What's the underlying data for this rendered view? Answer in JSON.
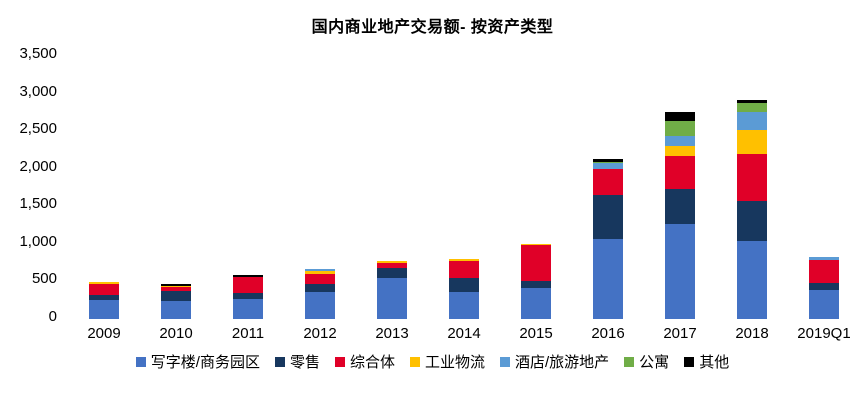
{
  "page": {
    "background": "#FFFFFF"
  },
  "chart_data": {
    "type": "bar",
    "stacked": true,
    "title": "国内商业地产交易额- 按资产类型",
    "categories": [
      "2009",
      "2010",
      "2011",
      "2012",
      "2013",
      "2014",
      "2015",
      "2016",
      "2017",
      "2018",
      "2019Q1"
    ],
    "series": [
      {
        "name": "写字楼/商务园区",
        "color": "#4472C4",
        "values": [
          250,
          240,
          265,
          355,
          550,
          360,
          410,
          1060,
          1270,
          1040,
          385
        ]
      },
      {
        "name": "零售",
        "color": "#17375E",
        "values": [
          65,
          130,
          80,
          105,
          130,
          180,
          90,
          590,
          465,
          535,
          95
        ]
      },
      {
        "name": "综合体",
        "color": "#E00028",
        "values": [
          145,
          50,
          210,
          145,
          65,
          230,
          480,
          340,
          440,
          615,
          300
        ]
      },
      {
        "name": "工业物流",
        "color": "#FFC000",
        "values": [
          30,
          25,
          0,
          40,
          25,
          25,
          25,
          0,
          130,
          320,
          0
        ]
      },
      {
        "name": "酒店/旅游地产",
        "color": "#5B9BD5",
        "values": [
          0,
          0,
          0,
          25,
          0,
          0,
          0,
          80,
          130,
          240,
          50
        ]
      },
      {
        "name": "公寓",
        "color": "#70AD47",
        "values": [
          0,
          0,
          0,
          0,
          0,
          0,
          0,
          25,
          195,
          120,
          0
        ]
      },
      {
        "name": "其他",
        "color": "#000000",
        "values": [
          0,
          25,
          25,
          0,
          0,
          0,
          0,
          40,
          130,
          50,
          0
        ]
      }
    ],
    "totals": [
      490,
      470,
      580,
      670,
      770,
      795,
      1005,
      2135,
      2760,
      2920,
      830
    ],
    "xlabel": "",
    "ylabel": "",
    "ylim": [
      0,
      3500
    ],
    "ytick_step": 500,
    "ytick_labels": [
      "0",
      "500",
      "1,000",
      "1,500",
      "2,000",
      "2,500",
      "3,000",
      "3,500"
    ],
    "grid": false,
    "legend_position": "bottom"
  }
}
